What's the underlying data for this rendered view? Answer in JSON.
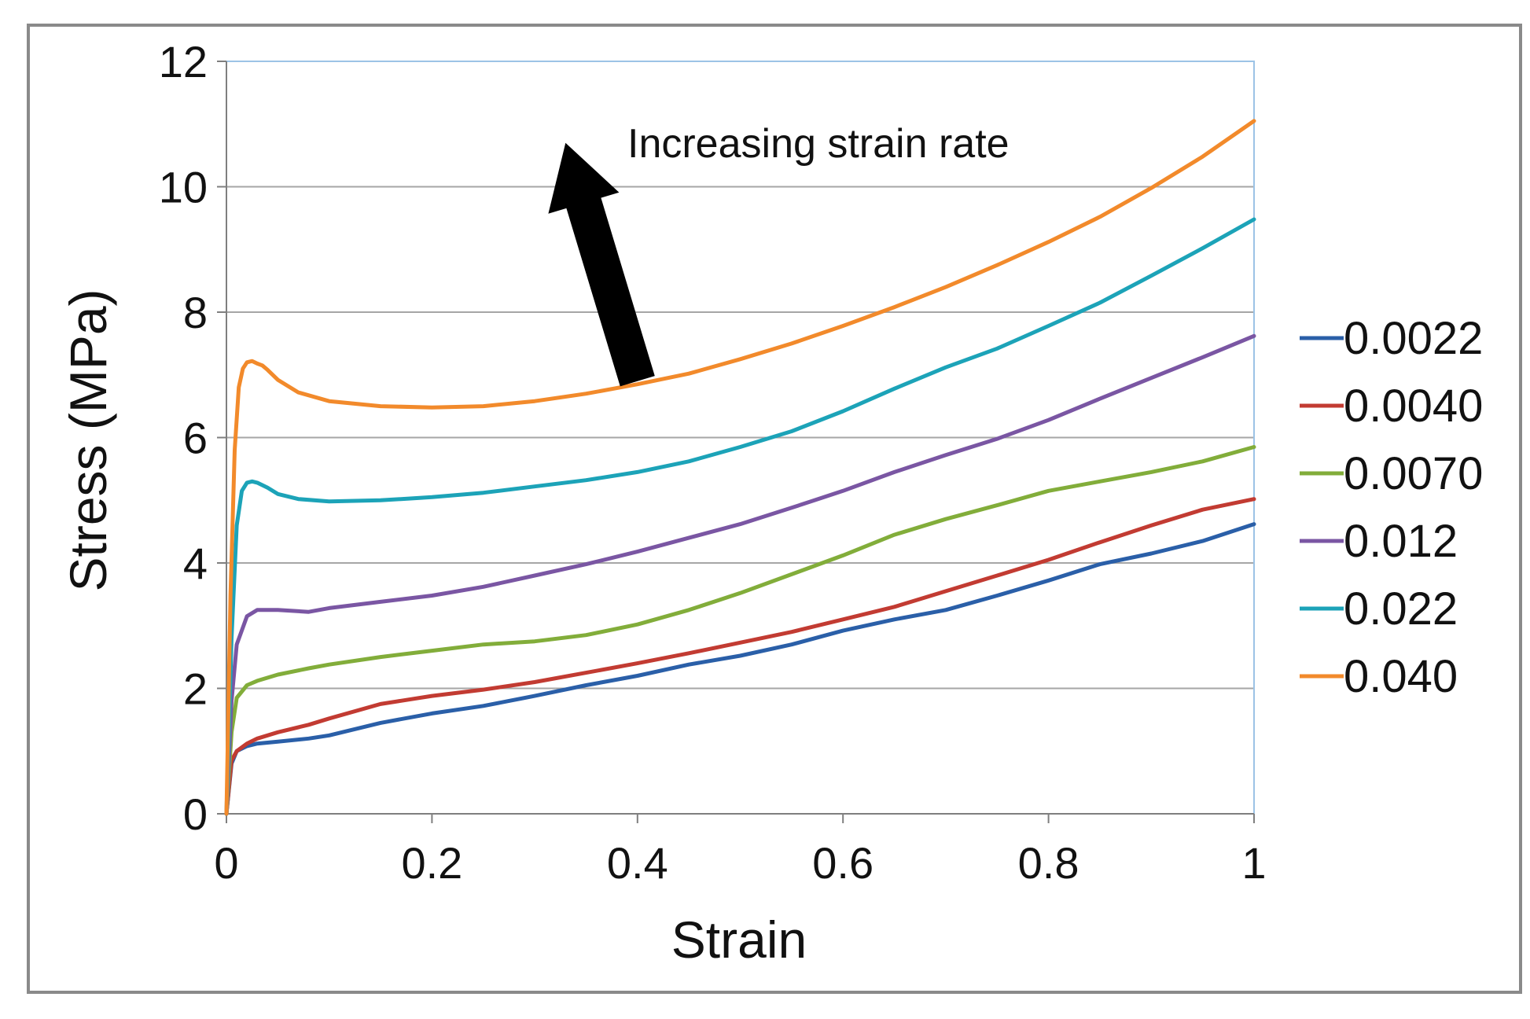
{
  "chart_data": {
    "type": "line",
    "title": "",
    "xlabel": "Strain",
    "ylabel": "Stress (MPa)",
    "xlim": [
      0,
      1
    ],
    "ylim": [
      0,
      12
    ],
    "xticks": [
      0,
      0.2,
      0.4,
      0.6,
      0.8,
      1
    ],
    "xtick_labels": [
      "0",
      "0.2",
      "0.4",
      "0.6",
      "0.8",
      "1"
    ],
    "yticks": [
      0,
      2,
      4,
      6,
      8,
      10,
      12
    ],
    "ytick_labels": [
      "0",
      "2",
      "4",
      "6",
      "8",
      "10",
      "12"
    ],
    "grid": "horizontal",
    "legend_position": "right",
    "annotation": {
      "text": "Increasing strain rate",
      "arrow_from": [
        0.4,
        6.9
      ],
      "arrow_to": [
        0.33,
        10.7
      ]
    },
    "series": [
      {
        "name": "0.0022",
        "color": "#2a5fa8",
        "x": [
          0,
          0.005,
          0.01,
          0.02,
          0.03,
          0.05,
          0.08,
          0.1,
          0.15,
          0.2,
          0.25,
          0.3,
          0.35,
          0.4,
          0.45,
          0.5,
          0.55,
          0.6,
          0.65,
          0.7,
          0.75,
          0.8,
          0.85,
          0.9,
          0.95,
          1.0
        ],
        "y": [
          0,
          0.8,
          1.0,
          1.08,
          1.12,
          1.15,
          1.2,
          1.25,
          1.45,
          1.6,
          1.72,
          1.88,
          2.05,
          2.2,
          2.38,
          2.52,
          2.7,
          2.92,
          3.1,
          3.25,
          3.48,
          3.72,
          3.98,
          4.15,
          4.35,
          4.62
        ]
      },
      {
        "name": "0.0040",
        "color": "#c23b32",
        "x": [
          0,
          0.005,
          0.01,
          0.02,
          0.03,
          0.05,
          0.08,
          0.1,
          0.15,
          0.2,
          0.25,
          0.3,
          0.35,
          0.4,
          0.45,
          0.5,
          0.55,
          0.6,
          0.65,
          0.7,
          0.75,
          0.8,
          0.85,
          0.9,
          0.95,
          1.0
        ],
        "y": [
          0,
          0.85,
          1.0,
          1.12,
          1.2,
          1.3,
          1.42,
          1.52,
          1.75,
          1.88,
          1.98,
          2.1,
          2.25,
          2.4,
          2.56,
          2.73,
          2.9,
          3.1,
          3.3,
          3.55,
          3.8,
          4.05,
          4.33,
          4.6,
          4.85,
          5.02
        ]
      },
      {
        "name": "0.0070",
        "color": "#82ad3a",
        "x": [
          0,
          0.005,
          0.01,
          0.02,
          0.03,
          0.05,
          0.08,
          0.1,
          0.15,
          0.2,
          0.25,
          0.3,
          0.35,
          0.4,
          0.45,
          0.5,
          0.55,
          0.6,
          0.65,
          0.7,
          0.75,
          0.8,
          0.85,
          0.9,
          0.95,
          1.0
        ],
        "y": [
          0,
          1.3,
          1.85,
          2.05,
          2.12,
          2.22,
          2.32,
          2.38,
          2.5,
          2.6,
          2.7,
          2.75,
          2.85,
          3.02,
          3.25,
          3.52,
          3.82,
          4.12,
          4.45,
          4.7,
          4.92,
          5.15,
          5.3,
          5.45,
          5.62,
          5.85
        ]
      },
      {
        "name": "0.012",
        "color": "#7a56a3",
        "x": [
          0,
          0.005,
          0.01,
          0.02,
          0.03,
          0.05,
          0.08,
          0.1,
          0.15,
          0.2,
          0.25,
          0.3,
          0.35,
          0.4,
          0.45,
          0.5,
          0.55,
          0.6,
          0.65,
          0.7,
          0.75,
          0.8,
          0.85,
          0.9,
          0.95,
          1.0
        ],
        "y": [
          0,
          1.8,
          2.7,
          3.15,
          3.25,
          3.25,
          3.22,
          3.28,
          3.38,
          3.48,
          3.62,
          3.8,
          3.98,
          4.18,
          4.4,
          4.62,
          4.88,
          5.15,
          5.45,
          5.72,
          5.98,
          6.28,
          6.62,
          6.95,
          7.28,
          7.62
        ]
      },
      {
        "name": "0.022",
        "color": "#1ca3b8",
        "x": [
          0,
          0.005,
          0.01,
          0.015,
          0.02,
          0.025,
          0.03,
          0.04,
          0.05,
          0.07,
          0.1,
          0.15,
          0.2,
          0.25,
          0.3,
          0.35,
          0.4,
          0.45,
          0.5,
          0.55,
          0.6,
          0.65,
          0.7,
          0.75,
          0.8,
          0.85,
          0.9,
          0.95,
          1.0
        ],
        "y": [
          0,
          2.8,
          4.6,
          5.15,
          5.28,
          5.3,
          5.28,
          5.2,
          5.1,
          5.02,
          4.98,
          5.0,
          5.05,
          5.12,
          5.22,
          5.32,
          5.45,
          5.62,
          5.85,
          6.1,
          6.42,
          6.78,
          7.12,
          7.42,
          7.78,
          8.15,
          8.58,
          9.02,
          9.48
        ]
      },
      {
        "name": "0.040",
        "color": "#f28a2b",
        "x": [
          0,
          0.004,
          0.008,
          0.012,
          0.016,
          0.02,
          0.025,
          0.03,
          0.035,
          0.04,
          0.05,
          0.07,
          0.1,
          0.15,
          0.2,
          0.25,
          0.3,
          0.35,
          0.4,
          0.45,
          0.5,
          0.55,
          0.6,
          0.65,
          0.7,
          0.75,
          0.8,
          0.85,
          0.9,
          0.95,
          1.0
        ],
        "y": [
          0,
          3.5,
          5.8,
          6.8,
          7.1,
          7.2,
          7.22,
          7.18,
          7.15,
          7.08,
          6.92,
          6.72,
          6.58,
          6.5,
          6.48,
          6.5,
          6.58,
          6.7,
          6.85,
          7.02,
          7.25,
          7.5,
          7.78,
          8.08,
          8.4,
          8.75,
          9.12,
          9.52,
          9.98,
          10.48,
          11.05
        ]
      }
    ]
  }
}
